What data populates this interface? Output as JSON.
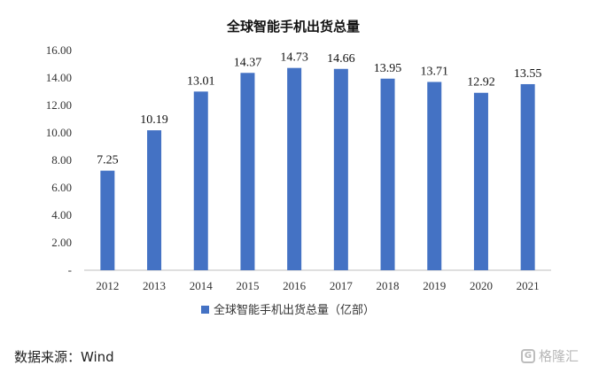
{
  "chart_data": {
    "type": "bar",
    "title": "全球智能手机出货总量",
    "categories": [
      "2012",
      "2013",
      "2014",
      "2015",
      "2016",
      "2017",
      "2018",
      "2019",
      "2020",
      "2021"
    ],
    "series": [
      {
        "name": "全球智能手机出货总量（亿部）",
        "values": [
          7.25,
          10.19,
          13.01,
          14.37,
          14.73,
          14.66,
          13.95,
          13.71,
          12.92,
          13.55
        ]
      }
    ],
    "data_labels": [
      "7.25",
      "10.19",
      "13.01",
      "14.37",
      "14.73",
      "14.66",
      "13.95",
      "13.71",
      "12.92",
      "13.55"
    ],
    "y_ticks": [
      "-",
      "2.00",
      "4.00",
      "6.00",
      "8.00",
      "10.00",
      "12.00",
      "14.00",
      "16.00"
    ],
    "ylim": [
      0,
      16
    ],
    "grid": false,
    "legend_position": "bottom",
    "bar_color": "#4472C4"
  },
  "source": "数据来源：Wind",
  "watermark": "格隆汇"
}
